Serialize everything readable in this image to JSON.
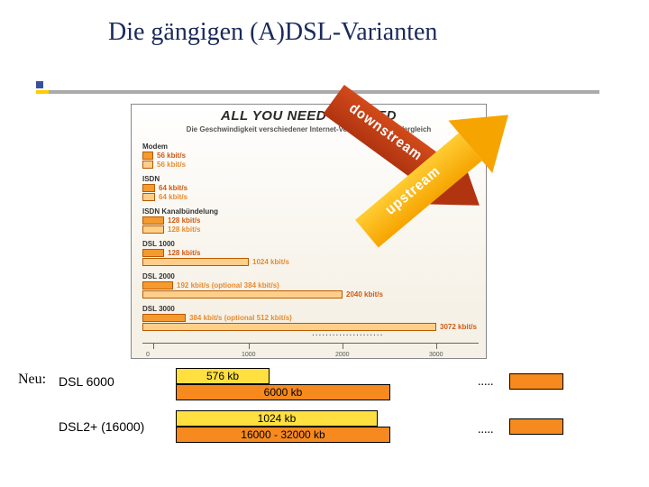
{
  "title": "Die gängigen (A)DSL-Varianten",
  "colors": {
    "title": "#1a2a5c",
    "arrow_down": "#d24a1a",
    "arrow_down_grad": "#b03410",
    "arrow_up": "#f6a400",
    "arrow_up_grad": "#ffcc33",
    "bar_orange": "#f59a2e",
    "bar_orange_light": "#ffcf8a",
    "bar_border": "#b85a00",
    "yellow": "#ffe040",
    "orange": "#f68a1e"
  },
  "chart": {
    "title": "ALL YOU NEED IS SPEED",
    "subtitle": "Die Geschwindigkeit verschiedener Internet-Verbindungen im Vergleich",
    "arrow_down_text": "downstream",
    "arrow_up_text": "upstream",
    "rows": [
      {
        "label": "Modem",
        "v1": "56 kbit/s",
        "v1_color": "#cf5a14",
        "w1": 12,
        "v2": "56 kbit/s",
        "v2_color": "#e88b2f",
        "w2": 12
      },
      {
        "label": "ISDN",
        "v1": "64 kbit/s",
        "v1_color": "#cf5a14",
        "w1": 14,
        "v2": "64 kbit/s",
        "v2_color": "#e88b2f",
        "w2": 14
      },
      {
        "label": "ISDN Kanalbündelung",
        "v1": "128 kbit/s",
        "v1_color": "#cf5a14",
        "w1": 24,
        "v2": "128 kbit/s",
        "v2_color": "#e88b2f",
        "w2": 24
      },
      {
        "label": "DSL 1000",
        "v1": "128 kbit/s",
        "v1_color": "#cf5a14",
        "w1": 24,
        "v2": "1024 kbit/s",
        "v2_color": "#e88b2f",
        "w2": 118
      },
      {
        "label": "DSL 2000",
        "v1": "192 kbit/s (optional 384 kbit/s)",
        "v1_color": "#e88b2f",
        "w1": 34,
        "v2": "2040 kbit/s",
        "v2_color": "#cf5a14",
        "w2": 222
      },
      {
        "label": "DSL 3000",
        "v1": "384 kbit/s (optional 512 kbit/s)",
        "v1_color": "#e88b2f",
        "w1": 48,
        "v2": "3072 kbit/s",
        "v2_color": "#cf5a14",
        "w2": 326
      }
    ],
    "xticks": [
      {
        "pos": 12,
        "label": "0"
      },
      {
        "pos": 118,
        "label": "1000"
      },
      {
        "pos": 222,
        "label": "2000"
      },
      {
        "pos": 326,
        "label": "3000"
      }
    ],
    "dots_under": "....................."
  },
  "neu": {
    "heading": "Neu:",
    "rows": [
      {
        "name": "DSL 6000",
        "up": "576 kb",
        "up_w": 104,
        "dn": "6000 kb",
        "dn_w": 238
      },
      {
        "name": "DSL2+ (16000)",
        "up": "1024 kb",
        "up_w": 224,
        "dn": "16000 - 32000 kb",
        "dn_w": 238
      }
    ],
    "ellipsis": "....."
  }
}
